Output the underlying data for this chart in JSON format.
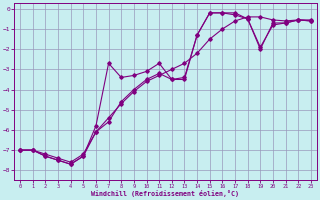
{
  "xlabel": "Windchill (Refroidissement éolien,°C)",
  "hours": [
    0,
    1,
    2,
    3,
    4,
    5,
    6,
    7,
    8,
    9,
    10,
    11,
    12,
    13,
    14,
    15,
    16,
    17,
    18,
    19,
    20,
    21,
    22,
    23
  ],
  "line_zigzag": [
    -7.0,
    -7.0,
    -7.3,
    -7.5,
    -7.7,
    -7.3,
    -5.8,
    -2.7,
    -3.4,
    -3.3,
    -3.1,
    -2.7,
    -3.5,
    -3.5,
    -1.3,
    -0.2,
    -0.2,
    -0.3,
    -0.5,
    -2.0,
    -0.7,
    -0.7,
    -0.55,
    -0.6
  ],
  "line_smooth": [
    -7.0,
    -7.0,
    -7.2,
    -7.4,
    -7.6,
    -7.2,
    -6.1,
    -5.4,
    -4.7,
    -4.1,
    -3.6,
    -3.3,
    -3.0,
    -2.7,
    -2.2,
    -1.5,
    -1.0,
    -0.6,
    -0.4,
    -0.4,
    -0.55,
    -0.6,
    -0.55,
    -0.55
  ],
  "line_mid": [
    -7.0,
    -7.0,
    -7.3,
    -7.5,
    -7.7,
    -7.3,
    -6.1,
    -5.6,
    -4.6,
    -4.0,
    -3.5,
    -3.2,
    -3.5,
    -3.4,
    -1.3,
    -0.2,
    -0.2,
    -0.2,
    -0.5,
    -1.9,
    -0.8,
    -0.7,
    -0.55,
    -0.6
  ],
  "line_color": "#800080",
  "bg_color": "#c8eef0",
  "grid_color": "#9999bb",
  "ylim": [
    -8.5,
    0.3
  ],
  "xlim": [
    -0.5,
    23.5
  ],
  "yticks": [
    0,
    -1,
    -2,
    -3,
    -4,
    -5,
    -6,
    -7,
    -8
  ],
  "xticks": [
    0,
    1,
    2,
    3,
    4,
    5,
    6,
    7,
    8,
    9,
    10,
    11,
    12,
    13,
    14,
    15,
    16,
    17,
    18,
    19,
    20,
    21,
    22,
    23
  ]
}
